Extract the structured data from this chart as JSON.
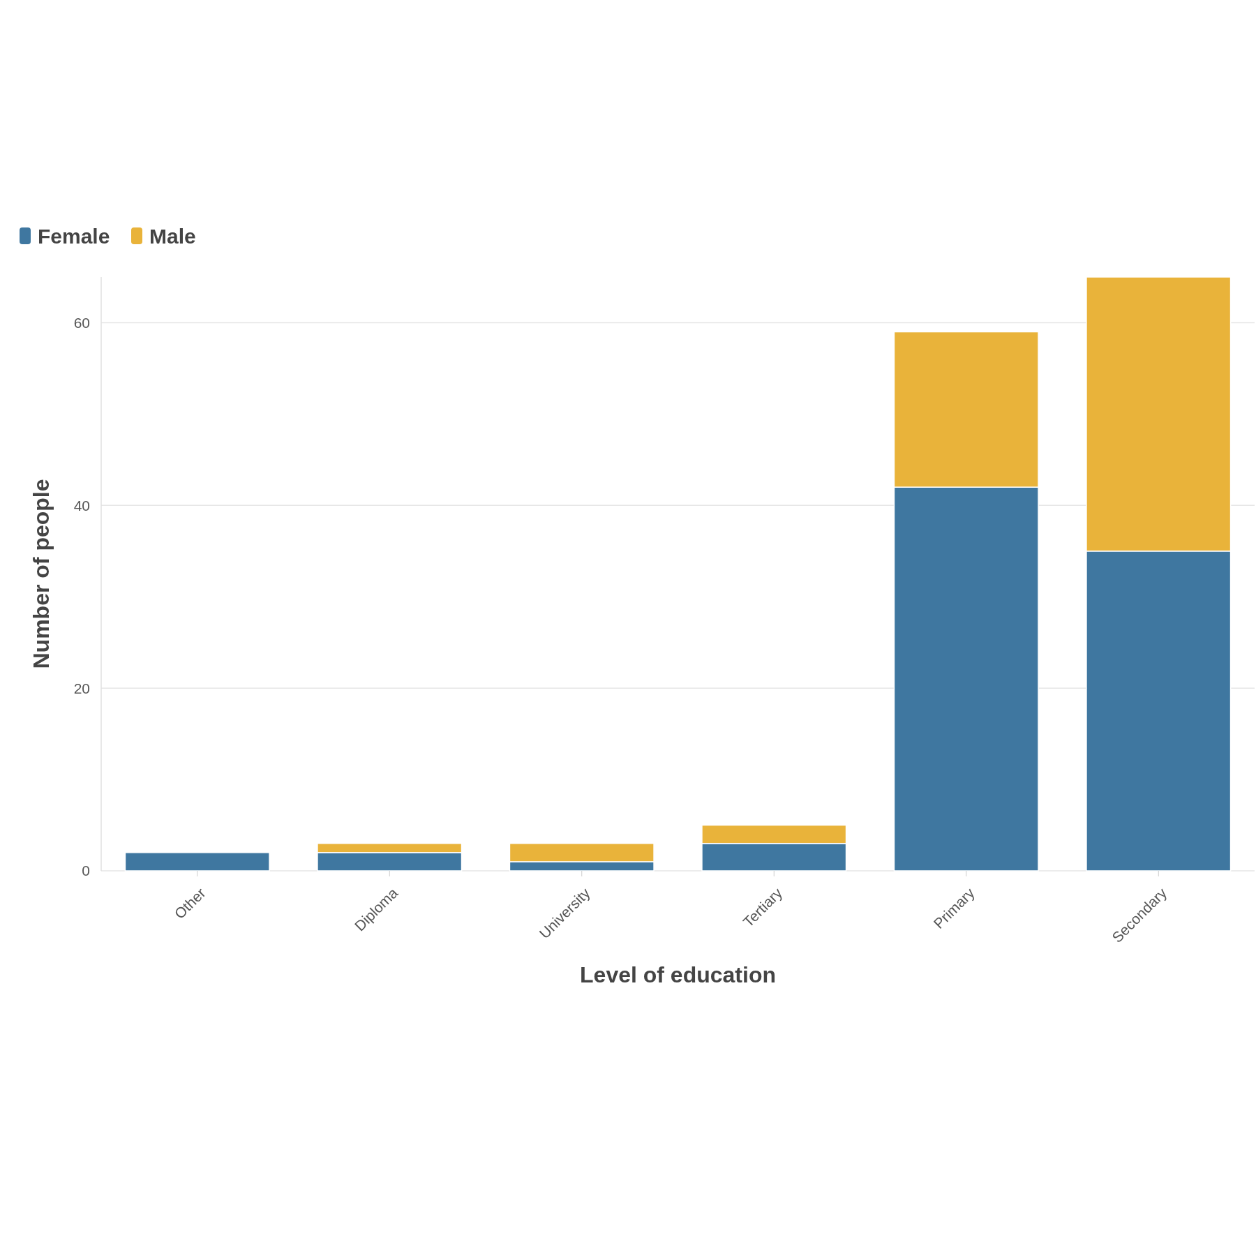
{
  "chart_data": {
    "type": "bar",
    "xlabel": "Level of education",
    "ylabel": "Number of people",
    "categories": [
      "Other",
      "Diploma",
      "University",
      "Tertiary",
      "Primary",
      "Secondary"
    ],
    "series": [
      {
        "name": "Female",
        "color": "#3f77a0",
        "values": [
          2,
          2,
          1,
          3,
          42,
          35
        ]
      },
      {
        "name": "Male",
        "color": "#e9b33a",
        "values": [
          0,
          1,
          2,
          2,
          17,
          30
        ]
      }
    ],
    "stacked": true,
    "ylim": [
      0,
      65
    ],
    "yticks": [
      0,
      20,
      40,
      60
    ],
    "grid": "y",
    "legend": "top left"
  }
}
